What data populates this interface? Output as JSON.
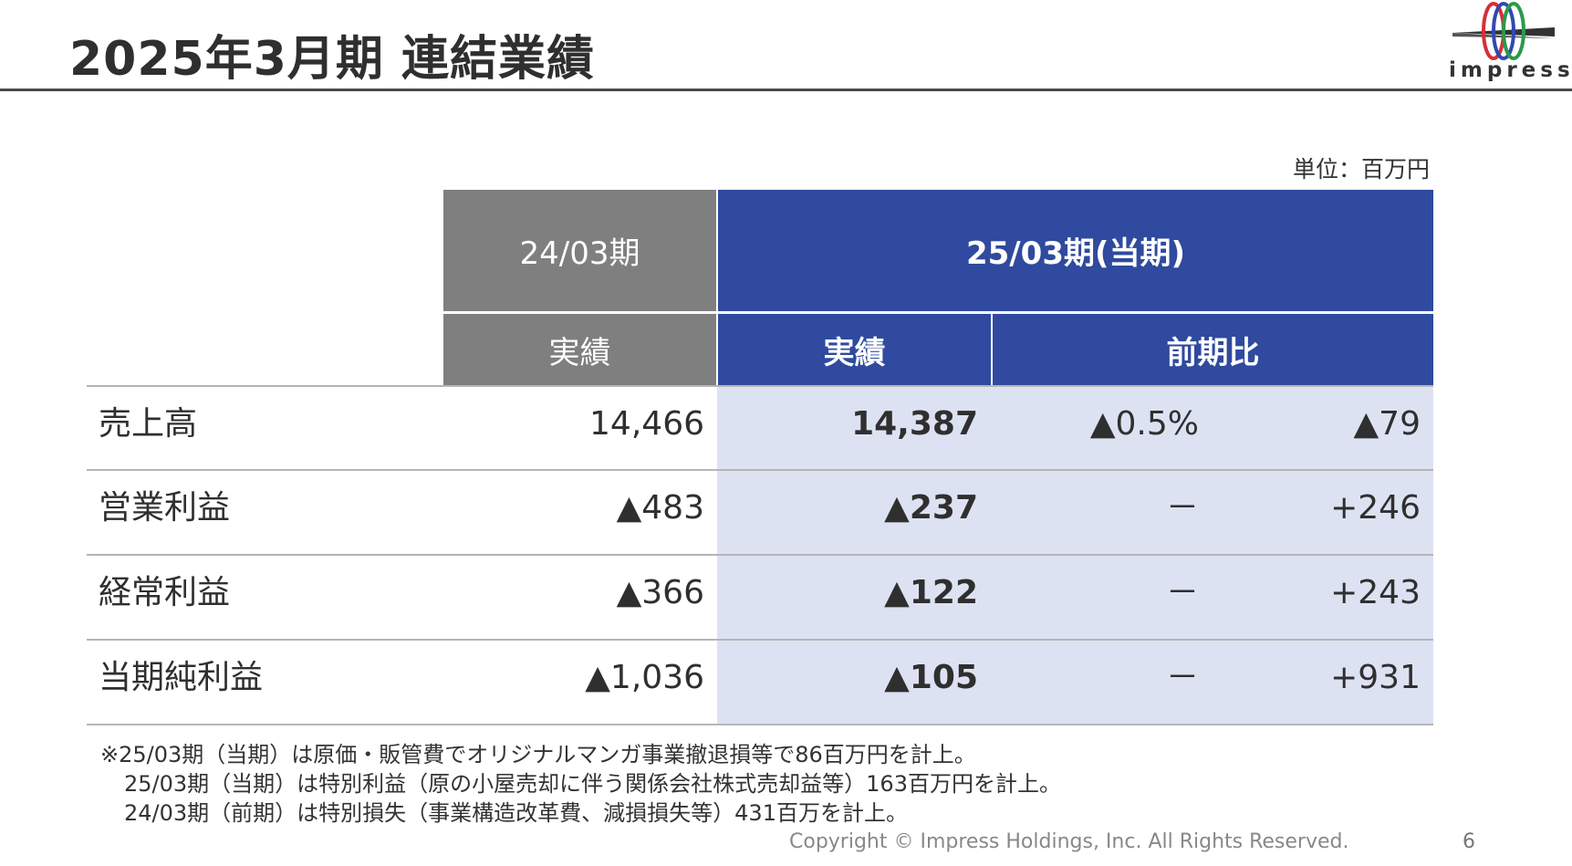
{
  "header": {
    "title": "2025年3月期 連結業績",
    "logo_text": "impress"
  },
  "unit_label": "単位：百万円",
  "table": {
    "group_headers": {
      "prev": "24/03期",
      "current": "25/03期(当期)"
    },
    "sub_headers": {
      "prev_actual": "実績",
      "cur_actual": "実績",
      "yoy": "前期比"
    },
    "rows": [
      {
        "label": "売上高",
        "prev": "14,466",
        "cur": "14,387",
        "yoy_pct": "▲0.5%",
        "yoy_amt": "▲79"
      },
      {
        "label": "営業利益",
        "prev": "▲483",
        "cur": "▲237",
        "yoy_pct": "－",
        "yoy_amt": "+246"
      },
      {
        "label": "経常利益",
        "prev": "▲366",
        "cur": "▲122",
        "yoy_pct": "－",
        "yoy_amt": "+243"
      },
      {
        "label": "当期純利益",
        "prev": "▲1,036",
        "cur": "▲105",
        "yoy_pct": "－",
        "yoy_amt": "+931"
      }
    ]
  },
  "notes": [
    "※25/03期（当期）は原価・販管費でオリジナルマンガ事業撤退損等で86百万円を計上。",
    "25/03期（当期）は特別利益（原の小屋売却に伴う関係会社株式売却益等）163百万円を計上。",
    "24/03期（前期）は特別損失（事業構造改革費、減損損失等）431百万を計上。"
  ],
  "footer": {
    "copyright": "Copyright © Impress Holdings, Inc. All Rights Reserved.",
    "page_number": "6"
  },
  "colors": {
    "blue_header": "#2f4a9e",
    "gray_header": "#7f7f7f",
    "current_shade": "#dde2f3"
  }
}
